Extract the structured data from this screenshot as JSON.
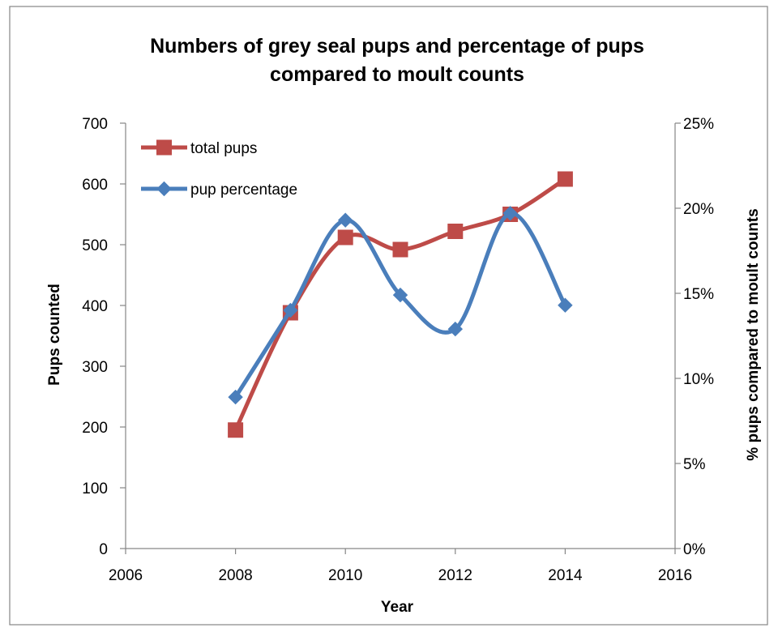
{
  "chart_data": {
    "type": "line",
    "title_line1": "Numbers of grey seal pups and percentage of pups",
    "title_line2": "compared to moult counts",
    "xlabel": "Year",
    "ylabel": "Pups counted",
    "y2label": "% pups compared to moult counts",
    "xlim": [
      2006,
      2016
    ],
    "ylim": [
      0,
      700
    ],
    "y2lim": [
      0,
      25
    ],
    "x_ticks": [
      "2006",
      "2008",
      "2010",
      "2012",
      "2014",
      "2016"
    ],
    "y_ticks": [
      "0",
      "100",
      "200",
      "300",
      "400",
      "500",
      "600",
      "700"
    ],
    "y2_ticks": [
      "0%",
      "5%",
      "10%",
      "15%",
      "20%",
      "25%"
    ],
    "legend_position": "top-left",
    "smoothed": true,
    "series": [
      {
        "name": "total pups",
        "axis": "left",
        "color": "#be4b48",
        "marker": "square",
        "x": [
          2008,
          2009,
          2010,
          2011,
          2012,
          2013,
          2014
        ],
        "y": [
          195,
          388,
          512,
          492,
          522,
          550,
          608
        ]
      },
      {
        "name": "pup percentage",
        "axis": "right",
        "color": "#4a7ebb",
        "marker": "diamond",
        "x": [
          2008,
          2009,
          2010,
          2011,
          2012,
          2013,
          2014
        ],
        "y": [
          8.9,
          14.0,
          19.3,
          14.9,
          12.9,
          19.7,
          14.3
        ]
      }
    ]
  }
}
